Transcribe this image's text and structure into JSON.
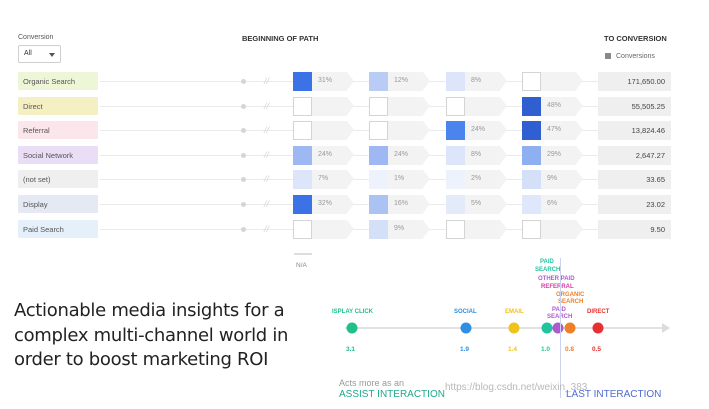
{
  "header": {
    "conversion_label": "Conversion",
    "beginning_label": "BEGINNING OF PATH",
    "to_conversion_label": "TO CONVERSION",
    "filter_value": "All",
    "conversions_col": "Conversions"
  },
  "rows": [
    {
      "channel": "Organic Search",
      "color": "#eef6d8",
      "value": "171,650.00",
      "cells": [
        {
          "pct": "31%",
          "fill": "#3b73e6"
        },
        {
          "pct": "12%",
          "fill": "#b9ccf5"
        },
        {
          "pct": "8%",
          "fill": "#dce5f9"
        },
        {
          "pct": "",
          "fill": "#ffffff"
        }
      ]
    },
    {
      "channel": "Direct",
      "color": "#f5f0c4",
      "value": "55,505.25",
      "cells": [
        {
          "pct": "",
          "fill": "#ffffff"
        },
        {
          "pct": "",
          "fill": "#ffffff"
        },
        {
          "pct": "",
          "fill": "#ffffff"
        },
        {
          "pct": "48%",
          "fill": "#2f5fd0"
        }
      ]
    },
    {
      "channel": "Referral",
      "color": "#fbe6ec",
      "value": "13,824.46",
      "cells": [
        {
          "pct": "",
          "fill": "#ffffff"
        },
        {
          "pct": "",
          "fill": "#ffffff"
        },
        {
          "pct": "24%",
          "fill": "#4c84ee"
        },
        {
          "pct": "47%",
          "fill": "#2f5fd0"
        }
      ]
    },
    {
      "channel": "Social Network",
      "color": "#e9def5",
      "value": "2,647.27",
      "cells": [
        {
          "pct": "24%",
          "fill": "#9db8f2"
        },
        {
          "pct": "24%",
          "fill": "#9db8f2"
        },
        {
          "pct": "8%",
          "fill": "#dce5f9"
        },
        {
          "pct": "29%",
          "fill": "#8fb0f0"
        }
      ]
    },
    {
      "channel": "(not set)",
      "color": "#efefef",
      "value": "33.65",
      "cells": [
        {
          "pct": "7%",
          "fill": "#dce5f9"
        },
        {
          "pct": "1%",
          "fill": "#eef2fc"
        },
        {
          "pct": "2%",
          "fill": "#eef2fc"
        },
        {
          "pct": "9%",
          "fill": "#d4dff8"
        }
      ]
    },
    {
      "channel": "Display",
      "color": "#e4e9f4",
      "value": "23.02",
      "cells": [
        {
          "pct": "32%",
          "fill": "#3b73e6"
        },
        {
          "pct": "16%",
          "fill": "#aac3f3"
        },
        {
          "pct": "5%",
          "fill": "#e3eafa"
        },
        {
          "pct": "6%",
          "fill": "#dfe7fa"
        }
      ]
    },
    {
      "channel": "Paid Search",
      "color": "#e6f0fb",
      "value": "9.50",
      "cells": [
        {
          "pct": "",
          "fill": "#ffffff"
        },
        {
          "pct": "9%",
          "fill": "#d4dff8"
        },
        {
          "pct": "",
          "fill": "#ffffff"
        },
        {
          "pct": "",
          "fill": "#ffffff"
        }
      ]
    }
  ],
  "na_label": "N/A",
  "tagline": {
    "line1": "Actionable media insights for a",
    "line2": "complex multi-channel world in",
    "line3": "order to boost marketing ROI"
  },
  "timeline": {
    "points": [
      {
        "label": "DISPLAY CLICK",
        "display_label": "ISPLAY CLICK",
        "value": "3.1",
        "color": "#20c08a"
      },
      {
        "label": "SOCIAL",
        "value": "1.9",
        "color": "#2f8fe0"
      },
      {
        "label": "EMAIL",
        "value": "1.4",
        "color": "#f2c21c"
      },
      {
        "label": "PAID SEARCH",
        "value": "1.0",
        "color": "#22c4a0"
      },
      {
        "label": "OTHER PAID",
        "value": "",
        "color": "#b05ad0"
      },
      {
        "label": "ORGANIC SEARCH",
        "value": "0.8",
        "color": "#f07f2a"
      },
      {
        "label": "DIRECT",
        "value": "0.5",
        "color": "#e83030"
      }
    ],
    "referral_label": "REFERRAL",
    "paid_search_second": "PAID SEARCH"
  },
  "assist": {
    "small": "Acts more as an",
    "big": "ASSIST INTERACTION"
  },
  "last": {
    "big": "LAST INTERACTION"
  },
  "watermark": "https://blog.csdn.net/weixin_383"
}
